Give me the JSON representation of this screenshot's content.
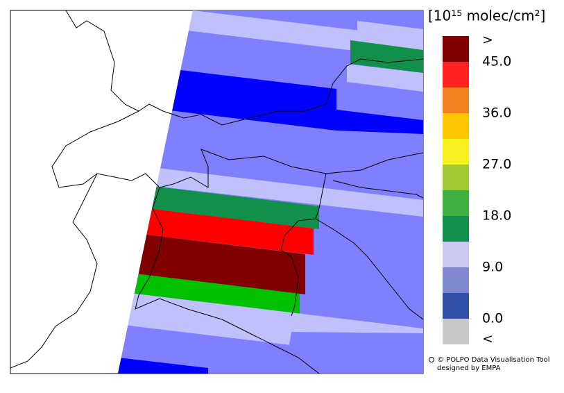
{
  "colorbar": {
    "title": "[10¹⁵ molec/cm²]",
    "labels": [
      ">",
      "45.0",
      "36.0",
      "27.0",
      "18.0",
      "9.0",
      "0.0",
      "<"
    ],
    "colors": [
      "#800000",
      "#ff2020",
      "#f08020",
      "#ffc800",
      "#f8f020",
      "#a0c830",
      "#40b040",
      "#10904a",
      "#c8c8f0",
      "#8088d0",
      "#3050a8",
      "#c8c8c8"
    ]
  },
  "credit": [
    "© POLPO Data Visualisation Tool",
    "designed by EMPA"
  ]
}
